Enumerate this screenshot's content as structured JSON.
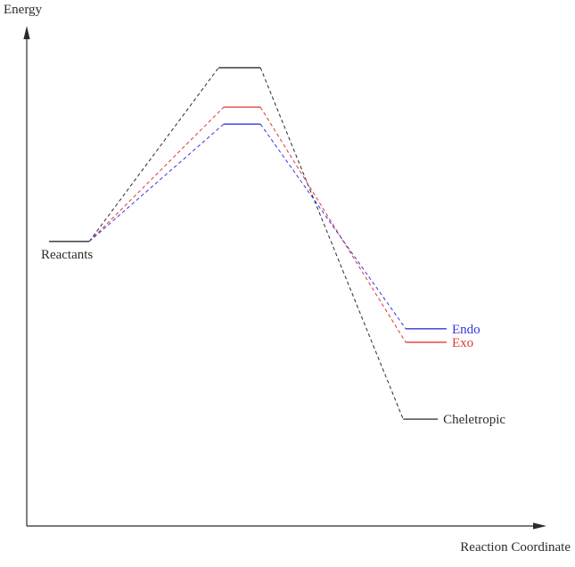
{
  "page": {
    "background": "#ffffff"
  },
  "chart_data": {
    "type": "line",
    "title": "",
    "xlabel": "Reaction Coordinate",
    "ylabel": "Energy",
    "x_range": [
      0,
      10
    ],
    "y_range": [
      0,
      10
    ],
    "grid": false,
    "ticks": false,
    "axis_arrows": true,
    "legend_position": "inline-right-of-product-levels",
    "line_style": {
      "connector": "dashed",
      "level": "solid"
    },
    "colors": {
      "axis": "#2b2b2b"
    },
    "reactants": {
      "label": "Reactants",
      "color": "#2b2b2b",
      "energy": 5.7,
      "x_start": 0.43,
      "x_end": 1.21
    },
    "series": [
      {
        "name": "Cheletropic",
        "color": "#2b2b2b",
        "transition_state": {
          "energy": 9.18,
          "x_start": 3.71,
          "x_end": 4.52
        },
        "product": {
          "energy": 2.14,
          "x_start": 7.28,
          "x_end": 7.95
        }
      },
      {
        "name": "Exo",
        "color": "#e33535",
        "transition_state": {
          "energy": 8.39,
          "x_start": 3.81,
          "x_end": 4.52
        },
        "product": {
          "energy": 3.68,
          "x_start": 7.33,
          "x_end": 8.12
        }
      },
      {
        "name": "Endo",
        "color": "#3535e3",
        "transition_state": {
          "energy": 8.05,
          "x_start": 3.81,
          "x_end": 4.52
        },
        "product": {
          "energy": 3.95,
          "x_start": 7.33,
          "x_end": 8.12
        }
      }
    ]
  }
}
